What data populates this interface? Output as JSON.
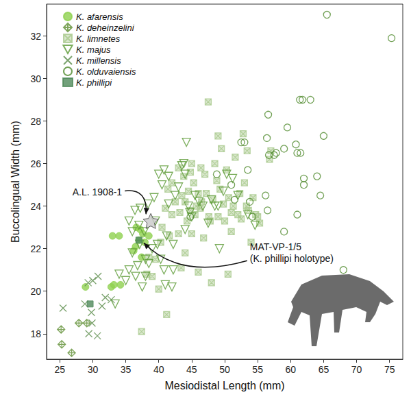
{
  "chart_data": {
    "type": "scatter",
    "x_label": "Mesiodistal Length (mm)",
    "y_label": "Buccolingual Width (mm)",
    "xlim": [
      23,
      77
    ],
    "ylim": [
      16.8,
      33.5
    ],
    "xticks": [
      25,
      30,
      35,
      40,
      45,
      50,
      55,
      60,
      65,
      70,
      75
    ],
    "yticks": [
      18,
      20,
      22,
      24,
      26,
      28,
      30,
      32
    ],
    "grid": false,
    "legend": "top-left",
    "series": [
      {
        "name": "K. afarensis",
        "color": "#8fd14f",
        "marker": "circle",
        "x": [
          28.9,
          32.8,
          33.2,
          34.2,
          33.0,
          34.0,
          36.2,
          37.0,
          37.6,
          37.9,
          38.5,
          36.5,
          37.4,
          36.6,
          37.2
        ],
        "values": [
          20.2,
          20.2,
          20.3,
          20.3,
          22.6,
          22.6,
          21.9,
          22.4,
          22.7,
          22.3,
          22.6,
          22.1,
          21.6,
          23.0,
          22.9
        ]
      },
      {
        "name": "K. deheinzelini",
        "color": "#5f8f33",
        "marker": "diamond_cross",
        "x": [
          25.2,
          25.3,
          26.8,
          27.9,
          29.1
        ],
        "values": [
          18.2,
          17.5,
          17.1,
          18.5,
          18.5
        ]
      },
      {
        "name": "K. limnetes",
        "color": "#a9c98d",
        "marker": "square_x",
        "x": [
          37.4,
          38.2,
          38.5,
          39.0,
          39.5,
          40.0,
          40.3,
          40.5,
          41.0,
          41.2,
          41.4,
          42.0,
          42.5,
          43.0,
          43.2,
          43.5,
          43.8,
          44.0,
          44.3,
          44.5,
          44.8,
          45.0,
          45.3,
          45.5,
          45.7,
          46.0,
          46.3,
          46.5,
          46.8,
          47.0,
          47.2,
          47.5,
          47.6,
          48.0,
          48.2,
          48.5,
          48.8,
          49.0,
          49.3,
          49.5,
          49.8,
          50.0,
          50.3,
          50.6,
          51.0,
          51.3,
          51.6,
          52.0,
          52.3,
          52.5,
          52.8,
          53.0,
          53.3,
          53.6,
          54.0,
          54.3,
          54.7,
          55.0,
          55.3,
          56.8,
          57.0,
          45.0,
          46.0,
          44.0,
          49.0,
          43.0,
          42.0,
          41.6,
          43.4,
          44.8,
          51.0,
          50.5,
          53.4,
          47.8,
          46.4
        ],
        "values": [
          18.1,
          20.8,
          21.6,
          20.7,
          21.5,
          20.1,
          22.3,
          23.0,
          23.9,
          18.9,
          24.8,
          23.6,
          24.2,
          22.7,
          23.7,
          24.5,
          25.4,
          24.2,
          23.3,
          24.7,
          23.8,
          22.7,
          25.1,
          23.6,
          24.0,
          24.6,
          23.9,
          24.2,
          22.5,
          25.5,
          24.6,
          28.9,
          23.5,
          20.4,
          24.3,
          26.0,
          25.2,
          23.5,
          24.8,
          26.7,
          24.1,
          23.3,
          25.7,
          24.4,
          23.7,
          24.0,
          26.3,
          23.6,
          24.6,
          23.4,
          27.4,
          25.1,
          24.0,
          23.8,
          22.3,
          24.4,
          23.6,
          23.5,
          23.2,
          26.2,
          26.6,
          26.0,
          20.9,
          21.8,
          27.3,
          25.8,
          25.1,
          22.6,
          21.1,
          25.6,
          22.8,
          20.8,
          26.6,
          23.3,
          25.8
        ]
      },
      {
        "name": "K. majus",
        "color": "#5b9a35",
        "marker": "triangle_down",
        "x": [
          33.4,
          34.0,
          35.0,
          35.5,
          36.0,
          36.0,
          35.5,
          36.4,
          37.2,
          37.0,
          37.8,
          37.1,
          38.0,
          38.5,
          38.0,
          37.5,
          36.5,
          39.0,
          39.8,
          40.3,
          41.2,
          40.8,
          41.0,
          42.0,
          42.2,
          39.3,
          40.0,
          40.5,
          40.8,
          41.5,
          41.5,
          42.5,
          43.5,
          43.8,
          44.0,
          44.2,
          43.0,
          44.5,
          44.7,
          45.0,
          45.5,
          46.1,
          46.7,
          47.5,
          48.0,
          48.5,
          49.0,
          49.8,
          50.3,
          51.2,
          52.0,
          53.5,
          54.6,
          49.2,
          42.2,
          39.5,
          38.4,
          44.0,
          36.8
        ],
        "values": [
          19.4,
          20.8,
          20.5,
          21.0,
          21.8,
          22.8,
          23.3,
          23.8,
          23.9,
          23.1,
          22.8,
          22.2,
          21.5,
          21.3,
          20.7,
          20.2,
          20.7,
          22.0,
          22.2,
          21.5,
          22.6,
          21.0,
          20.3,
          20.2,
          22.2,
          24.4,
          25.5,
          25.0,
          25.7,
          24.1,
          25.4,
          24.5,
          25.9,
          26.0,
          25.5,
          27.0,
          24.9,
          24.0,
          23.7,
          23.5,
          24.5,
          24.2,
          24.0,
          23.2,
          24.3,
          24.0,
          24.0,
          24.7,
          25.5,
          25.3,
          24.5,
          23.6,
          23.1,
          22.0,
          21.0,
          23.3,
          24.1,
          22.9,
          21.2
        ]
      },
      {
        "name": "K. millensis",
        "color": "#5a8c4a",
        "marker": "x",
        "x": [
          25.5,
          28.8,
          29.3,
          30.0,
          30.8,
          29.8,
          31.4,
          31.9,
          29.4,
          30.7,
          32.8,
          29.9
        ],
        "values": [
          19.2,
          19.4,
          20.4,
          20.5,
          20.7,
          19.0,
          19.3,
          19.7,
          18.0,
          17.9,
          19.6,
          18.5
        ]
      },
      {
        "name": "K. olduvaiensis",
        "color": "#4f8a2c",
        "marker": "circle_open",
        "x": [
          44.8,
          48.8,
          51.0,
          51.5,
          52.5,
          53.0,
          53.5,
          53.8,
          54.2,
          56.2,
          56.5,
          56.4,
          56.6,
          56.7,
          57.5,
          57.8,
          59.0,
          59.5,
          59.0,
          60.8,
          61.0,
          61.4,
          61.8,
          62.0,
          62.0,
          61.5,
          61.0,
          63.0,
          64.0,
          64.5,
          65.0,
          65.5,
          68.0,
          75.3
        ],
        "values": [
          23.5,
          25.5,
          25.0,
          24.3,
          27.0,
          27.0,
          25.7,
          24.2,
          23.5,
          24.5,
          23.8,
          27.2,
          28.3,
          26.4,
          26.4,
          26.5,
          26.7,
          27.7,
          22.8,
          26.9,
          26.5,
          29.0,
          29.0,
          25.3,
          25.0,
          26.5,
          23.6,
          29.0,
          25.4,
          24.5,
          27.3,
          33.0,
          21.0,
          31.9
        ]
      },
      {
        "name": "K. phillipi",
        "color": "#4f8a5a",
        "marker": "square",
        "x": [
          29.6,
          37.0
        ],
        "values": [
          19.4,
          22.4
        ]
      }
    ],
    "annotations": [
      {
        "text": [
          "A.L. 1908-1"
        ],
        "x": 38.8,
        "y": 23.3,
        "marker": "star",
        "color": "#c8c8c8"
      },
      {
        "text": [
          "MAT-VP-1/5",
          "(K. phillipi holotype)"
        ],
        "x": 37.0,
        "y": 22.4
      }
    ]
  }
}
